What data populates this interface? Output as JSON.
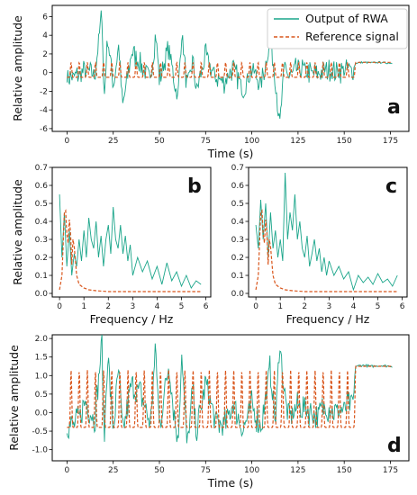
{
  "colors": {
    "rwa": "#1aa58a",
    "reference": "#d9561c",
    "axes": "#000000"
  },
  "legend": {
    "rwa_label": "Output of RWA",
    "reference_label": "Reference signal",
    "placement": "top-right of panel a"
  },
  "chart_data": [
    {
      "panel": "a",
      "type": "line",
      "xlabel": "Time (s)",
      "ylabel": "Relative amplitude",
      "xlim": [
        -8,
        185
      ],
      "ylim": [
        -6.3,
        7.2
      ],
      "xticks": [
        0,
        25,
        50,
        75,
        100,
        125,
        150,
        175
      ],
      "yticks": [
        -6,
        -4,
        -2,
        0,
        2,
        4,
        6
      ],
      "notes": "RWA output fluctuates strongly (peaks near 6.7 at t≈19 s, minimum near -5.7 at t≈115 s); reference is a periodic pulse train of amplitude ≈1.1 until t≈156 s, then a plateau near 1.1 to 176 s",
      "series": [
        {
          "name": "Output of RWA",
          "x": [
            0,
            5,
            10,
            15,
            19,
            20,
            22,
            25,
            28,
            30,
            35,
            40,
            45,
            48,
            50,
            55,
            60,
            62,
            65,
            68,
            70,
            75,
            80,
            85,
            90,
            95,
            100,
            105,
            110,
            113,
            115,
            118,
            120,
            125,
            130,
            135,
            140,
            145,
            150,
            155,
            156,
            160,
            165,
            170,
            176
          ],
          "y": [
            -0.5,
            -0.4,
            0.2,
            -0.3,
            6.7,
            -3.2,
            4.0,
            -1.5,
            3.0,
            -3.8,
            2.2,
            0.8,
            -1.0,
            4.3,
            -0.8,
            2.6,
            -3.0,
            4.5,
            -1.7,
            1.2,
            -2.0,
            1.8,
            -0.5,
            -1.0,
            0.6,
            -1.8,
            0.4,
            -1.2,
            3.2,
            -1.0,
            -5.7,
            1.0,
            -0.6,
            0.5,
            0.1,
            -0.2,
            0.3,
            0.1,
            0.2,
            0.4,
            1.0,
            1.1,
            1.05,
            1.1,
            1.0
          ]
        },
        {
          "name": "Reference signal",
          "period_s": 4.4,
          "peak": 1.1,
          "trough": -0.5,
          "pulse_start": 0,
          "pulse_end": 156,
          "plateau_value": 1.1,
          "plateau_end": 176
        }
      ]
    },
    {
      "panel": "b",
      "type": "line",
      "xlabel": "Frequency / Hz",
      "ylabel": "Relative amplitude",
      "xlim": [
        -0.3,
        6.2
      ],
      "ylim": [
        -0.02,
        0.7
      ],
      "xticks": [
        0,
        1,
        2,
        3,
        4,
        5,
        6
      ],
      "yticks": [
        0.0,
        0.1,
        0.2,
        0.3,
        0.4,
        0.5,
        0.6,
        0.7
      ],
      "series": [
        {
          "name": "Output of RWA",
          "x": [
            0,
            0.1,
            0.2,
            0.3,
            0.4,
            0.5,
            0.6,
            0.7,
            0.8,
            0.9,
            1.0,
            1.1,
            1.2,
            1.3,
            1.4,
            1.5,
            1.6,
            1.7,
            1.8,
            1.9,
            2.0,
            2.1,
            2.2,
            2.3,
            2.4,
            2.5,
            2.6,
            2.7,
            2.8,
            2.9,
            3.0,
            3.2,
            3.4,
            3.6,
            3.8,
            4.0,
            4.2,
            4.4,
            4.6,
            4.8,
            5.0,
            5.2,
            5.4,
            5.6,
            5.8
          ],
          "y": [
            0.55,
            0.2,
            0.45,
            0.15,
            0.35,
            0.1,
            0.22,
            0.15,
            0.3,
            0.18,
            0.35,
            0.2,
            0.42,
            0.3,
            0.25,
            0.4,
            0.2,
            0.32,
            0.15,
            0.3,
            0.38,
            0.22,
            0.48,
            0.3,
            0.25,
            0.38,
            0.22,
            0.32,
            0.18,
            0.27,
            0.1,
            0.2,
            0.12,
            0.18,
            0.08,
            0.15,
            0.05,
            0.17,
            0.07,
            0.12,
            0.04,
            0.1,
            0.03,
            0.07,
            0.05
          ]
        },
        {
          "name": "Reference signal",
          "x": [
            0,
            0.1,
            0.2,
            0.25,
            0.3,
            0.35,
            0.4,
            0.45,
            0.5,
            0.55,
            0.6,
            0.7,
            0.8,
            1.0,
            1.2,
            1.5,
            2.0,
            3.0,
            4.0,
            5.0,
            5.8
          ],
          "y": [
            0.02,
            0.1,
            0.45,
            0.46,
            0.33,
            0.28,
            0.41,
            0.34,
            0.16,
            0.3,
            0.26,
            0.1,
            0.05,
            0.03,
            0.02,
            0.015,
            0.01,
            0.01,
            0.01,
            0.01,
            0.01
          ]
        }
      ]
    },
    {
      "panel": "c",
      "type": "line",
      "xlabel": "Frequency / Hz",
      "ylabel": "",
      "xlim": [
        -0.3,
        6.2
      ],
      "ylim": [
        -0.02,
        0.7
      ],
      "xticks": [
        0,
        1,
        2,
        3,
        4,
        5,
        6
      ],
      "yticks": [
        0.0,
        0.1,
        0.2,
        0.3,
        0.4,
        0.5,
        0.6,
        0.7
      ],
      "series": [
        {
          "name": "Output of RWA",
          "x": [
            0,
            0.1,
            0.2,
            0.3,
            0.4,
            0.5,
            0.6,
            0.7,
            0.8,
            0.9,
            1.0,
            1.1,
            1.2,
            1.3,
            1.4,
            1.5,
            1.6,
            1.7,
            1.8,
            1.9,
            2.0,
            2.1,
            2.2,
            2.3,
            2.4,
            2.5,
            2.6,
            2.7,
            2.8,
            2.9,
            3.0,
            3.2,
            3.4,
            3.6,
            3.8,
            4.0,
            4.2,
            4.4,
            4.6,
            4.8,
            5.0,
            5.2,
            5.4,
            5.6,
            5.8
          ],
          "y": [
            0.38,
            0.25,
            0.52,
            0.3,
            0.5,
            0.2,
            0.45,
            0.25,
            0.35,
            0.2,
            0.3,
            0.18,
            0.67,
            0.3,
            0.45,
            0.35,
            0.55,
            0.3,
            0.4,
            0.25,
            0.2,
            0.32,
            0.15,
            0.22,
            0.3,
            0.18,
            0.25,
            0.12,
            0.2,
            0.1,
            0.18,
            0.1,
            0.15,
            0.08,
            0.12,
            0.02,
            0.1,
            0.06,
            0.09,
            0.05,
            0.11,
            0.06,
            0.08,
            0.04,
            0.1
          ]
        },
        {
          "name": "Reference signal",
          "x": [
            0,
            0.1,
            0.2,
            0.25,
            0.3,
            0.35,
            0.4,
            0.45,
            0.5,
            0.55,
            0.6,
            0.7,
            0.8,
            1.0,
            1.2,
            1.5,
            2.0,
            3.0,
            4.0,
            5.0,
            5.8
          ],
          "y": [
            0.02,
            0.1,
            0.45,
            0.46,
            0.33,
            0.28,
            0.41,
            0.34,
            0.16,
            0.3,
            0.26,
            0.1,
            0.05,
            0.03,
            0.02,
            0.015,
            0.01,
            0.01,
            0.01,
            0.01,
            0.01
          ]
        }
      ]
    },
    {
      "panel": "d",
      "type": "line",
      "xlabel": "Time (s)",
      "ylabel": "Relative amplitude",
      "xlim": [
        -8,
        185
      ],
      "ylim": [
        -1.3,
        2.1
      ],
      "xticks": [
        0,
        25,
        50,
        75,
        100,
        125,
        150,
        175
      ],
      "yticks": [
        -1.0,
        -0.5,
        0.0,
        0.5,
        1.0,
        1.5,
        2.0
      ],
      "series": [
        {
          "name": "Output of RWA",
          "x": [
            0,
            5,
            10,
            15,
            19,
            20,
            22,
            25,
            28,
            30,
            35,
            40,
            45,
            48,
            50,
            55,
            60,
            62,
            65,
            68,
            70,
            75,
            80,
            85,
            90,
            95,
            100,
            105,
            110,
            113,
            115,
            118,
            120,
            125,
            130,
            135,
            140,
            145,
            150,
            155,
            156,
            160,
            165,
            170,
            176
          ],
          "y": [
            -0.4,
            -0.3,
            0.3,
            -0.2,
            1.9,
            -0.9,
            1.6,
            -0.5,
            1.2,
            -0.6,
            0.8,
            0.5,
            -0.3,
            1.7,
            -0.4,
            1.3,
            -0.9,
            1.7,
            -1.0,
            0.6,
            -0.6,
            0.8,
            -0.2,
            -0.4,
            0.3,
            -0.5,
            0.2,
            -0.4,
            1.2,
            -0.3,
            1.9,
            0.4,
            -0.2,
            0.2,
            0.1,
            -0.1,
            0.2,
            0.0,
            0.1,
            0.3,
            1.25,
            1.28,
            1.25,
            1.27,
            1.25
          ]
        },
        {
          "name": "Reference signal",
          "period_s": 4.4,
          "peak": 1.15,
          "trough": -0.4,
          "pulse_start": 0,
          "pulse_end": 156,
          "plateau_value": 1.25,
          "plateau_end": 176
        }
      ]
    }
  ]
}
